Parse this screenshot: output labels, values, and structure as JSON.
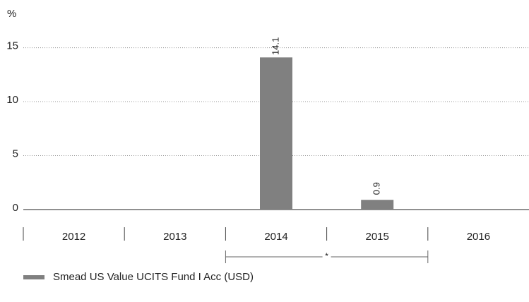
{
  "chart_data": {
    "type": "bar",
    "ylabel": "%",
    "categories": [
      "2012",
      "2013",
      "2014",
      "2015",
      "2016"
    ],
    "series": [
      {
        "name": "Smead US Value UCITS Fund I Acc (USD)",
        "color": "#808080",
        "values": [
          null,
          null,
          14.1,
          0.9,
          null
        ]
      }
    ],
    "ylim": [
      0,
      17
    ],
    "yticks": [
      0,
      5,
      10,
      15
    ],
    "grid": true,
    "annotation": "*"
  }
}
